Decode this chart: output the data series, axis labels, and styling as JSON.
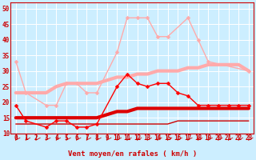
{
  "xlabel": "Vent moyen/en rafales ( km/h )",
  "background_color": "#cceeff",
  "grid_color": "#aaddcc",
  "xlim": [
    -0.5,
    23.5
  ],
  "ylim": [
    10,
    52
  ],
  "yticks": [
    10,
    15,
    20,
    25,
    30,
    35,
    40,
    45,
    50
  ],
  "xticks": [
    0,
    1,
    2,
    3,
    4,
    5,
    6,
    7,
    8,
    9,
    10,
    11,
    12,
    13,
    14,
    15,
    16,
    17,
    18,
    19,
    20,
    21,
    22,
    23
  ],
  "series": [
    {
      "x": [
        0,
        1,
        3,
        4,
        5,
        6,
        7,
        8,
        10,
        11,
        12,
        13,
        14,
        15,
        17,
        18,
        19,
        23
      ],
      "y": [
        33,
        23,
        19,
        19,
        26,
        26,
        23,
        23,
        36,
        47,
        47,
        47,
        41,
        41,
        47,
        40,
        33,
        30
      ],
      "color": "#ffaaaa",
      "linewidth": 1.0,
      "marker": "D",
      "markersize": 2.5,
      "zorder": 3
    },
    {
      "x": [
        0,
        1,
        2,
        3,
        4,
        5,
        6,
        7,
        8,
        9,
        10,
        11,
        12,
        13,
        14,
        15,
        16,
        17,
        18,
        19,
        20,
        21,
        22,
        23
      ],
      "y": [
        23,
        23,
        23,
        23,
        25,
        26,
        26,
        26,
        26,
        27,
        28,
        28,
        29,
        29,
        30,
        30,
        30,
        31,
        31,
        32,
        32,
        32,
        32,
        30
      ],
      "color": "#ffaaaa",
      "linewidth": 3.0,
      "marker": null,
      "markersize": 0,
      "zorder": 2
    },
    {
      "x": [
        0,
        1,
        3,
        4,
        5,
        6,
        7,
        8,
        10,
        11,
        12,
        13,
        14,
        15,
        16,
        17,
        18,
        19,
        20,
        21,
        22,
        23
      ],
      "y": [
        19,
        14,
        12,
        14,
        14,
        12,
        12,
        13,
        25,
        29,
        26,
        25,
        26,
        26,
        23,
        22,
        19,
        19,
        19,
        19,
        19,
        19
      ],
      "color": "#ff0000",
      "linewidth": 1.0,
      "marker": "D",
      "markersize": 2.5,
      "zorder": 4
    },
    {
      "x": [
        0,
        1,
        2,
        3,
        4,
        5,
        6,
        7,
        8,
        9,
        10,
        11,
        12,
        13,
        14,
        15,
        16,
        17,
        18,
        19,
        20,
        21,
        22,
        23
      ],
      "y": [
        15,
        15,
        15,
        15,
        15,
        15,
        15,
        15,
        15,
        16,
        17,
        17,
        18,
        18,
        18,
        18,
        18,
        18,
        18,
        18,
        18,
        18,
        18,
        18
      ],
      "color": "#dd0000",
      "linewidth": 3.0,
      "marker": null,
      "markersize": 0,
      "zorder": 2
    },
    {
      "x": [
        0,
        1,
        2,
        3,
        4,
        5,
        6,
        7,
        8,
        9,
        10,
        11,
        12,
        13,
        14,
        15,
        16,
        17,
        18,
        19,
        20,
        21,
        22,
        23
      ],
      "y": [
        13,
        13,
        13,
        13,
        13,
        13,
        13,
        13,
        13,
        13,
        13,
        13,
        13,
        13,
        13,
        13,
        14,
        14,
        14,
        14,
        14,
        14,
        14,
        14
      ],
      "color": "#cc0000",
      "linewidth": 1.0,
      "marker": null,
      "markersize": 0,
      "zorder": 1
    }
  ],
  "arrow_color": "#cc0000",
  "tick_fontsize": 5.5,
  "label_fontsize": 6.5
}
